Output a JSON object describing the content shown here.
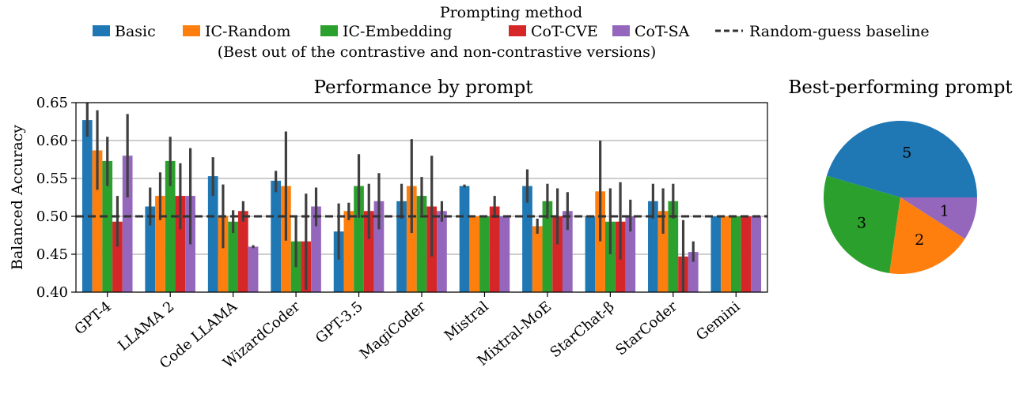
{
  "legend": {
    "title": "Prompting method",
    "items": [
      {
        "label": "Basic",
        "color": "#1f77b4",
        "kind": "patch"
      },
      {
        "label": "IC-Random",
        "color": "#ff7f0e",
        "kind": "patch"
      },
      {
        "label": "IC-Embedding",
        "color": "#2ca02c",
        "kind": "patch"
      },
      {
        "label": "CoT-CVE",
        "color": "#d62728",
        "kind": "patch"
      },
      {
        "label": "CoT-SA",
        "color": "#9467bd",
        "kind": "patch"
      },
      {
        "label": "Random-guess baseline",
        "color": "#333333",
        "kind": "dashed-line"
      }
    ],
    "note": "(Best out of the contrastive and non-contrastive versions)"
  },
  "chart_data": [
    {
      "type": "bar",
      "title": "Performance by prompt",
      "xlabel": "",
      "ylabel": "Balanced Accuracy",
      "ylim": [
        0.4,
        0.65
      ],
      "yticks": [
        "0.40",
        "0.45",
        "0.50",
        "0.55",
        "0.60",
        "0.65"
      ],
      "grid": "horizontal",
      "baseline": 0.5,
      "categories": [
        "GPT-4",
        "LLAMA 2",
        "Code LLAMA",
        "WizardCoder",
        "GPT-3.5",
        "MagiCoder",
        "Mistral",
        "Mixtral-MoE",
        "StarChat-β",
        "StarCoder",
        "Gemini"
      ],
      "series": [
        {
          "name": "Basic",
          "color": "#1f77b4",
          "values": [
            0.627,
            0.513,
            0.553,
            0.547,
            0.48,
            0.52,
            0.54,
            0.54,
            0.5,
            0.52,
            0.5
          ],
          "err_low": [
            0.605,
            0.488,
            0.527,
            0.532,
            0.443,
            0.497,
            0.538,
            0.518,
            0.5,
            0.497,
            0.5
          ],
          "err_high": [
            0.65,
            0.538,
            0.578,
            0.56,
            0.517,
            0.543,
            0.542,
            0.562,
            0.5,
            0.543,
            0.5
          ]
        },
        {
          "name": "IC-Random",
          "color": "#ff7f0e",
          "values": [
            0.587,
            0.527,
            0.5,
            0.54,
            0.507,
            0.54,
            0.5,
            0.487,
            0.533,
            0.507,
            0.5
          ],
          "err_low": [
            0.535,
            0.495,
            0.458,
            0.468,
            0.495,
            0.478,
            0.5,
            0.477,
            0.467,
            0.477,
            0.5
          ],
          "err_high": [
            0.64,
            0.558,
            0.542,
            0.612,
            0.518,
            0.602,
            0.5,
            0.497,
            0.6,
            0.537,
            0.5
          ]
        },
        {
          "name": "IC-Embedding",
          "color": "#2ca02c",
          "values": [
            0.573,
            0.573,
            0.493,
            0.467,
            0.54,
            0.527,
            0.5,
            0.52,
            0.493,
            0.52,
            0.5
          ],
          "err_low": [
            0.54,
            0.54,
            0.478,
            0.433,
            0.498,
            0.502,
            0.5,
            0.497,
            0.45,
            0.497,
            0.5
          ],
          "err_high": [
            0.605,
            0.605,
            0.508,
            0.5,
            0.582,
            0.552,
            0.5,
            0.543,
            0.537,
            0.543,
            0.5
          ]
        },
        {
          "name": "CoT-CVE",
          "color": "#d62728",
          "values": [
            0.493,
            0.527,
            0.507,
            0.467,
            0.507,
            0.513,
            0.513,
            0.5,
            0.493,
            0.447,
            0.5
          ],
          "err_low": [
            0.46,
            0.483,
            0.493,
            0.403,
            0.47,
            0.447,
            0.498,
            0.463,
            0.443,
            0.4,
            0.5
          ],
          "err_high": [
            0.527,
            0.57,
            0.52,
            0.53,
            0.543,
            0.58,
            0.527,
            0.537,
            0.545,
            0.495,
            0.5
          ]
        },
        {
          "name": "CoT-SA",
          "color": "#9467bd",
          "values": [
            0.58,
            0.527,
            0.46,
            0.513,
            0.52,
            0.507,
            0.5,
            0.507,
            0.5,
            0.453,
            0.5
          ],
          "err_low": [
            0.525,
            0.463,
            0.458,
            0.487,
            0.483,
            0.493,
            0.5,
            0.482,
            0.48,
            0.44,
            0.5
          ],
          "err_high": [
            0.635,
            0.59,
            0.462,
            0.538,
            0.557,
            0.52,
            0.5,
            0.532,
            0.522,
            0.467,
            0.5
          ]
        }
      ]
    },
    {
      "type": "pie",
      "title": "Best-performing prompt",
      "slices": [
        {
          "name": "Basic",
          "value": 5,
          "label": "5",
          "color": "#1f77b4"
        },
        {
          "name": "IC-Embedding",
          "value": 3,
          "label": "3",
          "color": "#2ca02c"
        },
        {
          "name": "IC-Random",
          "value": 2,
          "label": "2",
          "color": "#ff7f0e"
        },
        {
          "name": "CoT-SA",
          "value": 1,
          "label": "1",
          "color": "#9467bd"
        }
      ]
    }
  ]
}
